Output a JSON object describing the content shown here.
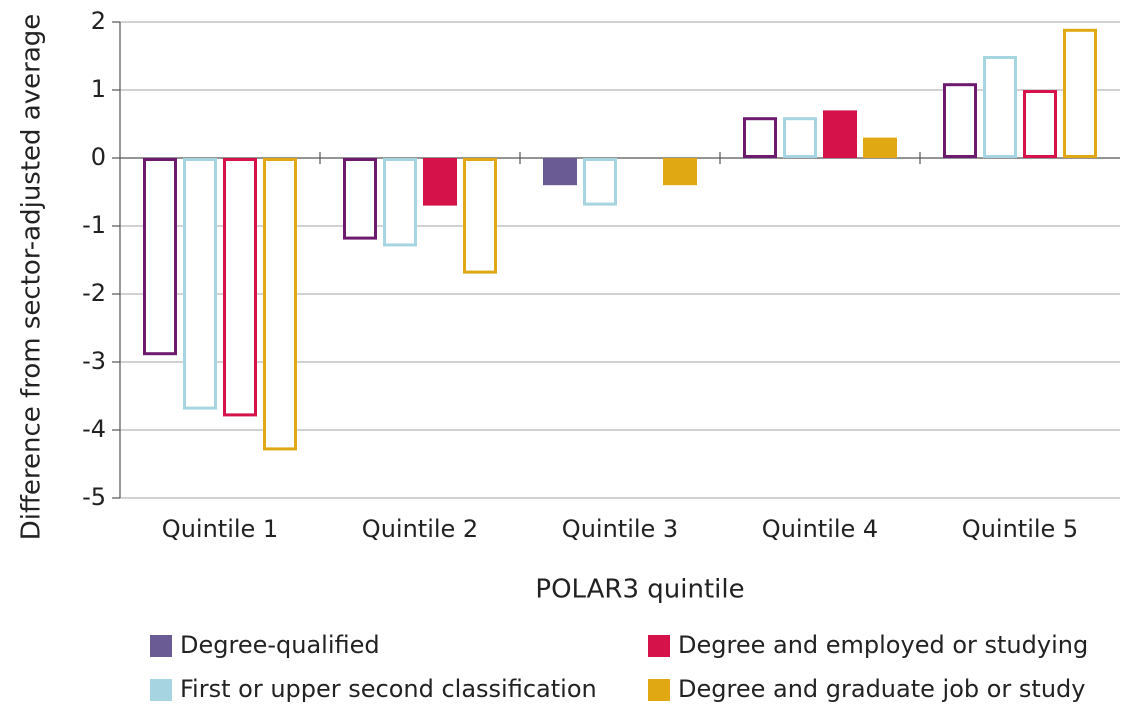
{
  "chart_data": {
    "type": "bar",
    "xlabel": "POLAR3 quintile",
    "ylabel": "Difference from sector-adjusted average",
    "categories": [
      "Quintile 1",
      "Quintile 2",
      "Quintile 3",
      "Quintile 4",
      "Quintile 5"
    ],
    "series": [
      {
        "name": "Degree-qualified",
        "color": "#6b5b95",
        "outline": "#6d1a6f",
        "values": [
          -2.9,
          -1.2,
          -0.4,
          0.6,
          1.1
        ],
        "filled": [
          false,
          false,
          true,
          false,
          false
        ]
      },
      {
        "name": "First or upper second classification",
        "color": "#a6d4e0",
        "outline": "#a6d4e0",
        "values": [
          -3.7,
          -1.3,
          -0.7,
          0.6,
          1.5
        ],
        "filled": [
          false,
          false,
          false,
          false,
          false
        ]
      },
      {
        "name": "Degree and employed or studying",
        "color": "#d6124a",
        "outline": "#d6124a",
        "values": [
          -3.8,
          -0.7,
          null,
          0.7,
          1.0
        ],
        "filled": [
          false,
          true,
          false,
          true,
          false
        ]
      },
      {
        "name": "Degree and graduate job or study",
        "color": "#e0a812",
        "outline": "#e0a812",
        "values": [
          -4.3,
          -1.7,
          -0.4,
          0.3,
          1.9
        ],
        "filled": [
          false,
          false,
          true,
          true,
          false
        ]
      }
    ],
    "ylim": [
      -5,
      2
    ],
    "yticks": [
      -5,
      -4,
      -3,
      -2,
      -1,
      0,
      1,
      2
    ],
    "grid": true
  }
}
